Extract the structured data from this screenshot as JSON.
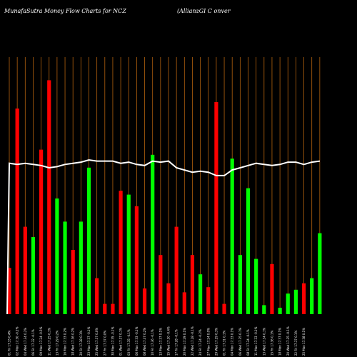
{
  "header": {
    "title_left": "MunafaSutra  Money Flow  Charts for NCZ",
    "title_right": "(AllianzGI C                                    onver"
  },
  "colors": {
    "background": "#000000",
    "gridline": "#b3610e",
    "up": "#00ff00",
    "down": "#ff0000",
    "line": "#ffffff"
  },
  "chart_data": {
    "type": "bar",
    "ylim": [
      0,
      100
    ],
    "grid": "vertical",
    "categories": [
      "01 Fri 17.33 0.4%",
      "02 Mon 17.30 -0.2%",
      "04 Wed 17.34 0.2%",
      "06 Fri 17.32 -0.1%",
      "09 Mon 17.24 -0.5%",
      "11 Wed 17.25 0.1%",
      "13 Fri 17.29 0.2%",
      "16 Mon 17.33 0.2%",
      "18 Wed 17.36 0.2%",
      "20 Fri 17.38 0.1%",
      "23 Mon 17.37 -0.1%",
      "25 Wed 17.37 0.0%",
      "27 Fri 17.37 0.0%",
      "30 Mon 17.35 -0.1%",
      "01 Wed 17.37 0.1%",
      "03 Fri 17.35 -0.1%",
      "06 Mon 17.33 -0.1%",
      "08 Wed 17.37 0.2%",
      "10 Fri 17.36 -0.1%",
      "13 Mon 17.37 0.1%",
      "15 Wed 17.30 -0.4%",
      "17 Fri 17.28 -0.1%",
      "20 Mon 17.29 0.1%",
      "22 Wed 17.28 -0.1%",
      "24 Fri 17.24 -0.2%",
      "27 Mon 17.24 0.0%",
      "29 Wed 17.29 0.3%",
      "01 Fri 17.31 0.1%",
      "04 Mon 17.33 0.1%",
      "06 Wed 17.35 0.1%",
      "08 Fri 17.34 -0.1%",
      "11 Mon 17.33 -0.1%",
      "13 Wed 17.34 0.1%",
      "15 Fri 17.36 0.1%",
      "18 Mon 17.37 0.1%",
      "20 Wed 17.35 -0.1%",
      "22 Fri 17.37 0.1%",
      "25 Mon 17.38 0.1%"
    ],
    "money_flow": [
      {
        "value": 18.0,
        "color": "down"
      },
      {
        "value": 80.0,
        "color": "down"
      },
      {
        "value": 34.0,
        "color": "down"
      },
      {
        "value": 30.0,
        "color": "up"
      },
      {
        "value": 64.0,
        "color": "down"
      },
      {
        "value": 91.0,
        "color": "down"
      },
      {
        "value": 45.0,
        "color": "up"
      },
      {
        "value": 36.0,
        "color": "up"
      },
      {
        "value": 25.0,
        "color": "down"
      },
      {
        "value": 36.0,
        "color": "up"
      },
      {
        "value": 57.0,
        "color": "up"
      },
      {
        "value": 14.0,
        "color": "down"
      },
      {
        "value": 4.0,
        "color": "down"
      },
      {
        "value": 4.0,
        "color": "down"
      },
      {
        "value": 48.0,
        "color": "down"
      },
      {
        "value": 46.5,
        "color": "up"
      },
      {
        "value": 42.0,
        "color": "down"
      },
      {
        "value": 10.0,
        "color": "down"
      },
      {
        "value": 62.0,
        "color": "up"
      },
      {
        "value": 23.0,
        "color": "down"
      },
      {
        "value": 12.0,
        "color": "down"
      },
      {
        "value": 34.0,
        "color": "down"
      },
      {
        "value": 8.5,
        "color": "down"
      },
      {
        "value": 23.0,
        "color": "down"
      },
      {
        "value": 15.5,
        "color": "up"
      },
      {
        "value": 10.5,
        "color": "down"
      },
      {
        "value": 82.5,
        "color": "down"
      },
      {
        "value": 4.0,
        "color": "down"
      },
      {
        "value": 60.5,
        "color": "up"
      },
      {
        "value": 23.0,
        "color": "up"
      },
      {
        "value": 49.0,
        "color": "up"
      },
      {
        "value": 21.5,
        "color": "up"
      },
      {
        "value": 3.5,
        "color": "up"
      },
      {
        "value": 19.5,
        "color": "down"
      },
      {
        "value": 2.5,
        "color": "up"
      },
      {
        "value": 8.0,
        "color": "up"
      },
      {
        "value": 9.5,
        "color": "up"
      },
      {
        "value": 12.0,
        "color": "down"
      },
      {
        "value": 14.0,
        "color": "up"
      },
      {
        "value": 31.5,
        "color": "up"
      }
    ],
    "price_line": [
      17.35,
      17.34,
      17.35,
      17.34,
      17.33,
      17.31,
      17.32,
      17.34,
      17.35,
      17.36,
      17.38,
      17.37,
      17.37,
      17.37,
      17.35,
      17.36,
      17.34,
      17.33,
      17.37,
      17.36,
      17.37,
      17.31,
      17.29,
      17.27,
      17.28,
      17.27,
      17.24,
      17.24,
      17.29,
      17.31,
      17.33,
      17.35,
      17.34,
      17.33,
      17.34,
      17.36,
      17.36,
      17.34,
      17.36,
      17.37
    ],
    "price_range": [
      16.0,
      18.3
    ],
    "price_start": 16.0
  }
}
